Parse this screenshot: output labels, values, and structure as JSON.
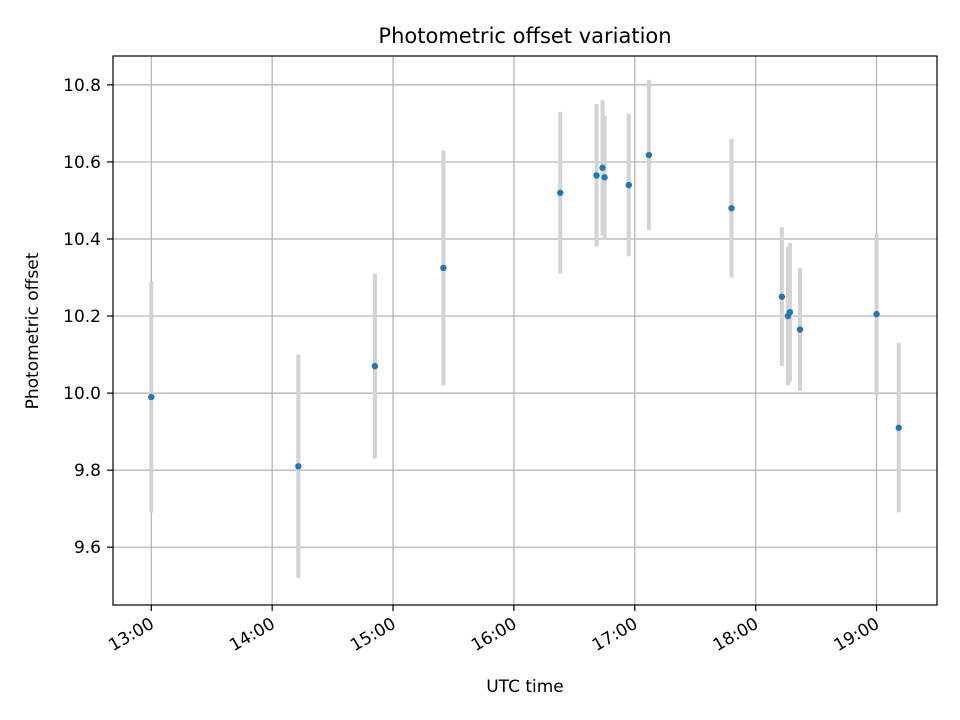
{
  "chart_data": {
    "type": "scatter",
    "title": "Photometric offset variation",
    "xlabel": "UTC time",
    "ylabel": "Photometric offset",
    "x_unit": "UTC time (HH:MM)",
    "xlim": [
      "12:41",
      "19:30"
    ],
    "ylim": [
      9.45,
      10.875
    ],
    "x_ticks": [
      "13:00",
      "14:00",
      "15:00",
      "16:00",
      "17:00",
      "18:00",
      "19:00"
    ],
    "y_ticks": [
      "9.6",
      "9.8",
      "10.0",
      "10.2",
      "10.4",
      "10.6",
      "10.8"
    ],
    "grid": true,
    "colors": {
      "points": "#1f77b4",
      "errorbars": "#d3d3d3",
      "grid": "#b0b0b0"
    },
    "series": [
      {
        "points": [
          {
            "x": "13:00",
            "y": 9.99,
            "err": 0.3
          },
          {
            "x": "14:13",
            "y": 9.81,
            "err": 0.29
          },
          {
            "x": "14:51",
            "y": 10.07,
            "err": 0.24
          },
          {
            "x": "15:25",
            "y": 10.325,
            "err": 0.305
          },
          {
            "x": "16:23",
            "y": 10.52,
            "err": 0.21
          },
          {
            "x": "16:41",
            "y": 10.565,
            "err": 0.185
          },
          {
            "x": "16:44",
            "y": 10.585,
            "err": 0.175
          },
          {
            "x": "16:45",
            "y": 10.56,
            "err": 0.16
          },
          {
            "x": "16:57",
            "y": 10.54,
            "err": 0.185
          },
          {
            "x": "17:07",
            "y": 10.618,
            "err": 0.195
          },
          {
            "x": "17:48",
            "y": 10.48,
            "err": 0.18
          },
          {
            "x": "18:13",
            "y": 10.25,
            "err": 0.18
          },
          {
            "x": "18:16",
            "y": 10.2,
            "err": 0.18
          },
          {
            "x": "18:17",
            "y": 10.21,
            "err": 0.18
          },
          {
            "x": "18:22",
            "y": 10.165,
            "err": 0.16
          },
          {
            "x": "19:00",
            "y": 10.205,
            "err": 0.21
          },
          {
            "x": "19:11",
            "y": 9.91,
            "err": 0.22
          }
        ]
      }
    ]
  }
}
